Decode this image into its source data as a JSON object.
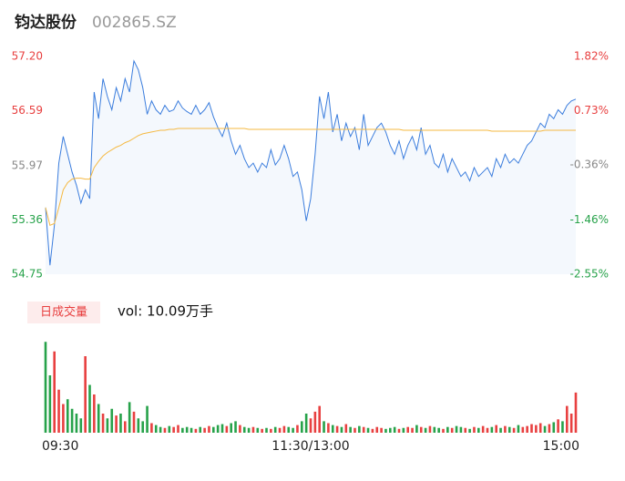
{
  "header": {
    "name": "钧达股份",
    "code": "002865.SZ"
  },
  "chart_data": {
    "type": "intraday",
    "x": [
      0,
      2,
      4,
      6,
      8,
      10,
      12,
      14,
      16,
      18,
      20,
      22,
      24,
      26,
      28,
      30,
      32,
      34,
      36,
      38,
      40,
      42,
      44,
      46,
      48,
      50,
      52,
      54,
      56,
      58,
      60,
      62,
      64,
      66,
      68,
      70,
      72,
      74,
      76,
      78,
      80,
      82,
      84,
      86,
      88,
      90,
      92,
      94,
      96,
      98,
      100,
      102,
      104,
      106,
      108,
      110,
      112,
      114,
      116,
      118,
      120,
      122,
      124,
      126,
      128,
      130,
      132,
      134,
      136,
      138,
      140,
      142,
      144,
      146,
      148,
      150,
      152,
      154,
      156,
      158,
      160,
      162,
      164,
      166,
      168,
      170,
      172,
      174,
      176,
      178,
      180,
      182,
      184,
      186,
      188,
      190,
      192,
      194,
      196,
      198,
      200,
      202,
      204,
      206,
      208,
      210,
      212,
      214,
      216,
      218,
      220,
      222,
      224,
      226,
      228,
      230,
      232,
      234,
      236,
      238,
      240
    ],
    "xlim": [
      0,
      240
    ],
    "xticks": [
      {
        "value": 0,
        "label": "09:30"
      },
      {
        "value": 120,
        "label": "11:30/13:00"
      },
      {
        "value": 240,
        "label": "15:00"
      }
    ],
    "ylim": [
      54.75,
      57.2
    ],
    "yticks": [
      {
        "value": 57.2,
        "label": "57.20"
      },
      56.59,
      55.97,
      55.36,
      54.75
    ],
    "y2lim": [
      -2.55,
      1.82
    ],
    "y2ticks": [
      {
        "value": 1.82,
        "label": "1.82%"
      },
      {
        "value": 0.73,
        "label": "0.73%"
      },
      {
        "value": -0.36,
        "label": "-0.36%"
      },
      {
        "value": -1.46,
        "label": "-1.46%"
      },
      {
        "value": -2.55,
        "label": "-2.55%"
      }
    ],
    "up_color": "#e84040",
    "down_color": "#27a24a",
    "flat_color": "#888888",
    "series": [
      {
        "color": "#3b7ddd",
        "values": [
          55.5,
          54.85,
          55.3,
          56.0,
          56.3,
          56.1,
          55.9,
          55.75,
          55.55,
          55.7,
          55.6,
          56.8,
          56.5,
          56.95,
          56.75,
          56.6,
          56.85,
          56.7,
          56.95,
          56.8,
          57.15,
          57.05,
          56.85,
          56.55,
          56.7,
          56.6,
          56.55,
          56.65,
          56.58,
          56.6,
          56.7,
          56.62,
          56.58,
          56.55,
          56.65,
          56.55,
          56.6,
          56.68,
          56.52,
          56.4,
          56.3,
          56.45,
          56.25,
          56.1,
          56.2,
          56.05,
          55.95,
          56.0,
          55.9,
          56.0,
          55.95,
          56.15,
          55.98,
          56.05,
          56.2,
          56.05,
          55.85,
          55.9,
          55.7,
          55.35,
          55.6,
          56.1,
          56.75,
          56.5,
          56.8,
          56.35,
          56.55,
          56.25,
          56.45,
          56.3,
          56.4,
          56.15,
          56.55,
          56.2,
          56.3,
          56.4,
          56.45,
          56.35,
          56.2,
          56.1,
          56.25,
          56.05,
          56.2,
          56.3,
          56.15,
          56.4,
          56.1,
          56.2,
          56.0,
          55.95,
          56.1,
          55.9,
          56.05,
          55.95,
          55.85,
          55.9,
          55.8,
          55.95,
          55.85,
          55.9,
          55.95,
          55.85,
          56.05,
          55.95,
          56.1,
          56.0,
          56.05,
          56.0,
          56.1,
          56.2,
          56.25,
          56.35,
          56.45,
          56.4,
          56.55,
          56.5,
          56.6,
          56.55,
          56.65,
          56.7,
          56.72
        ]
      },
      {
        "color": "#f5b942",
        "values": [
          55.5,
          55.3,
          55.32,
          55.5,
          55.7,
          55.78,
          55.82,
          55.83,
          55.83,
          55.82,
          55.82,
          55.95,
          56.02,
          56.08,
          56.12,
          56.15,
          56.18,
          56.2,
          56.23,
          56.25,
          56.28,
          56.31,
          56.33,
          56.34,
          56.35,
          56.36,
          56.37,
          56.37,
          56.38,
          56.38,
          56.39,
          56.39,
          56.39,
          56.39,
          56.39,
          56.39,
          56.39,
          56.39,
          56.39,
          56.39,
          56.39,
          56.39,
          56.39,
          56.39,
          56.39,
          56.39,
          56.38,
          56.38,
          56.38,
          56.38,
          56.38,
          56.38,
          56.38,
          56.38,
          56.38,
          56.38,
          56.38,
          56.38,
          56.38,
          56.38,
          56.38,
          56.38,
          56.38,
          56.38,
          56.38,
          56.38,
          56.38,
          56.38,
          56.38,
          56.38,
          56.38,
          56.38,
          56.38,
          56.38,
          56.38,
          56.38,
          56.38,
          56.38,
          56.38,
          56.38,
          56.38,
          56.37,
          56.37,
          56.37,
          56.37,
          56.37,
          56.37,
          56.37,
          56.37,
          56.37,
          56.37,
          56.37,
          56.37,
          56.37,
          56.37,
          56.37,
          56.37,
          56.37,
          56.37,
          56.37,
          56.37,
          56.36,
          56.36,
          56.36,
          56.36,
          56.36,
          56.36,
          56.36,
          56.36,
          56.36,
          56.36,
          56.36,
          56.36,
          56.37,
          56.37,
          56.37,
          56.37,
          56.37,
          56.37,
          56.37,
          56.37
        ]
      }
    ],
    "volume": {
      "label": "日成交量",
      "total": "vol: 10.09万手",
      "ylim": [
        0,
        100
      ],
      "values": [
        95,
        60,
        85,
        45,
        30,
        35,
        25,
        20,
        15,
        80,
        50,
        40,
        30,
        20,
        15,
        25,
        18,
        20,
        12,
        32,
        22,
        15,
        12,
        28,
        10,
        8,
        6,
        5,
        7,
        6,
        8,
        5,
        6,
        5,
        4,
        6,
        5,
        7,
        6,
        8,
        9,
        7,
        10,
        12,
        8,
        6,
        5,
        6,
        5,
        4,
        5,
        4,
        6,
        5,
        7,
        6,
        5,
        8,
        12,
        20,
        15,
        22,
        28,
        12,
        10,
        8,
        7,
        6,
        9,
        6,
        5,
        7,
        6,
        5,
        4,
        6,
        5,
        4,
        5,
        6,
        4,
        5,
        6,
        5,
        8,
        6,
        5,
        7,
        6,
        5,
        4,
        6,
        5,
        7,
        6,
        5,
        4,
        6,
        5,
        7,
        5,
        6,
        8,
        5,
        7,
        6,
        5,
        8,
        6,
        7,
        9,
        8,
        10,
        7,
        9,
        11,
        14,
        12,
        28,
        20,
        42
      ]
    }
  }
}
